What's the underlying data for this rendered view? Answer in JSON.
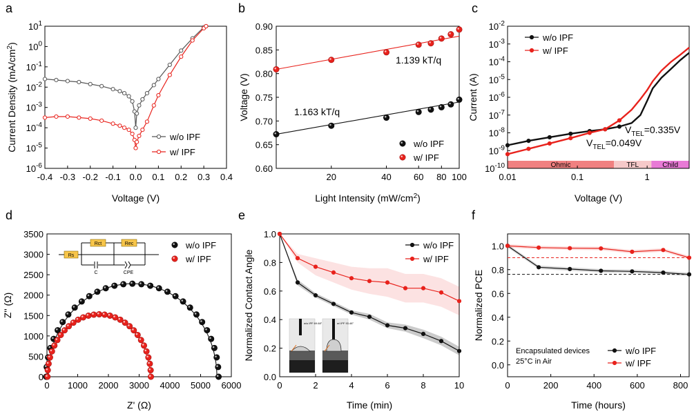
{
  "figure": {
    "panel_letters": [
      "a",
      "b",
      "c",
      "d",
      "e",
      "f"
    ]
  },
  "chart_data": [
    {
      "panel": "a",
      "type": "line",
      "xlabel": "Voltage (V)",
      "ylabel": "Current Density (mA/cm²)",
      "ylabel_parts": {
        "main": "Current Density (mA/cm",
        "sup": "2",
        "close": ")"
      },
      "xlim": [
        -0.4,
        0.4
      ],
      "ylim_log": [
        -6,
        1
      ],
      "xticks": [
        "-0.4",
        "-0.3",
        "-0.2",
        "-0.1",
        "0.0",
        "0.1",
        "0.2",
        "0.3",
        "0.4"
      ],
      "yticks": [
        {
          "base": "10",
          "exp": "-6"
        },
        {
          "base": "10",
          "exp": "-5"
        },
        {
          "base": "10",
          "exp": "-4"
        },
        {
          "base": "10",
          "exp": "-3"
        },
        {
          "base": "10",
          "exp": "-2"
        },
        {
          "base": "10",
          "exp": "-1"
        },
        {
          "base": "10",
          "exp": "0"
        },
        {
          "base": "10",
          "exp": "1"
        }
      ],
      "legend": [
        "w/o IPF",
        "w/ IPF"
      ],
      "series": [
        {
          "name": "w/o IPF",
          "color": "#555555",
          "x": [
            -0.4,
            -0.35,
            -0.3,
            -0.25,
            -0.2,
            -0.15,
            -0.1,
            -0.07,
            -0.05,
            -0.03,
            -0.015,
            -0.005,
            0.0,
            0.005,
            0.015,
            0.03,
            0.05,
            0.08,
            0.1,
            0.15,
            0.2,
            0.25,
            0.3,
            0.31
          ],
          "y_log": [
            -1.6,
            -1.65,
            -1.7,
            -1.75,
            -1.85,
            -1.95,
            -2.1,
            -2.2,
            -2.3,
            -2.45,
            -2.7,
            -3.2,
            -4.0,
            -3.3,
            -2.9,
            -2.6,
            -2.3,
            -1.9,
            -1.6,
            -0.9,
            -0.2,
            0.4,
            0.95,
            1.0
          ]
        },
        {
          "name": "w/ IPF",
          "color": "#e8221c",
          "x": [
            -0.4,
            -0.35,
            -0.3,
            -0.25,
            -0.2,
            -0.15,
            -0.1,
            -0.07,
            -0.05,
            -0.03,
            -0.015,
            -0.005,
            0.0,
            0.005,
            0.015,
            0.03,
            0.05,
            0.08,
            0.1,
            0.15,
            0.2,
            0.25,
            0.3,
            0.31
          ],
          "y_log": [
            -3.5,
            -3.45,
            -3.45,
            -3.5,
            -3.55,
            -3.65,
            -3.8,
            -3.9,
            -4.0,
            -4.1,
            -4.3,
            -4.6,
            -5.0,
            -4.7,
            -4.4,
            -4.1,
            -3.7,
            -2.9,
            -2.4,
            -1.4,
            -0.5,
            0.3,
            0.9,
            1.0
          ]
        }
      ]
    },
    {
      "panel": "b",
      "type": "scatter",
      "xlabel": "Light Intensity (mW/cm²)",
      "xlabel_parts": {
        "main": "Light Intensity (mW/cm",
        "sup": "2",
        "close": ")"
      },
      "ylabel": "Voltage (V)",
      "xscale": "log",
      "xlim": [
        10,
        100
      ],
      "ylim": [
        0.6,
        0.9
      ],
      "xticks": [
        "20",
        "40",
        "60",
        "80",
        "100"
      ],
      "yticks": [
        "0.60",
        "0.65",
        "0.70",
        "0.75",
        "0.80",
        "0.85",
        "0.90"
      ],
      "legend": [
        "w/o IPF",
        "w/ IPF"
      ],
      "annotations": [
        "1.139 kT/q",
        "1.163 kT/q"
      ],
      "series": [
        {
          "name": "w/o IPF",
          "color": "#111111",
          "x": [
            10,
            20,
            40,
            60,
            70,
            80,
            90,
            100
          ],
          "y": [
            0.672,
            0.69,
            0.707,
            0.719,
            0.724,
            0.729,
            0.735,
            0.745
          ],
          "fit": [
            [
              10,
              0.672
            ],
            [
              100,
              0.74
            ]
          ]
        },
        {
          "name": "w/ IPF",
          "color": "#e8221c",
          "x": [
            10,
            20,
            40,
            60,
            70,
            80,
            90,
            100
          ],
          "y": [
            0.809,
            0.829,
            0.845,
            0.861,
            0.864,
            0.874,
            0.883,
            0.893
          ],
          "fit": [
            [
              10,
              0.809
            ],
            [
              100,
              0.879
            ]
          ]
        }
      ]
    },
    {
      "panel": "c",
      "type": "line",
      "xlabel": "Voltage (V)",
      "ylabel": "Current (A)",
      "xscale": "log",
      "yscale": "log",
      "xlim": [
        0.01,
        4
      ],
      "ylim_log": [
        -10,
        -2
      ],
      "xticks": [
        "0.01",
        "0.1",
        "1"
      ],
      "yticks": [
        {
          "base": "10",
          "exp": "-10"
        },
        {
          "base": "10",
          "exp": "-9"
        },
        {
          "base": "10",
          "exp": "-8"
        },
        {
          "base": "10",
          "exp": "-7"
        },
        {
          "base": "10",
          "exp": "-6"
        },
        {
          "base": "10",
          "exp": "-5"
        },
        {
          "base": "10",
          "exp": "-4"
        },
        {
          "base": "10",
          "exp": "-3"
        },
        {
          "base": "10",
          "exp": "-2"
        }
      ],
      "legend": [
        "w/o IPF",
        "w/ IPF"
      ],
      "regions": [
        {
          "label": "Ohmic",
          "from": 0.01,
          "to": 0.335,
          "color": "#f08080"
        },
        {
          "label": "TFL",
          "from": 0.335,
          "to": 1.15,
          "color": "#f6c9c9"
        },
        {
          "label": "Child",
          "from": 1.15,
          "to": 4,
          "color": "#e87ad6"
        }
      ],
      "annotations": [
        {
          "text": "V",
          "sub": "TEL",
          "after": "=0.335V",
          "color": "#000000"
        },
        {
          "text": "V",
          "sub": "TEL",
          "after": "=0.049V",
          "color": "#e8221c"
        }
      ],
      "series": [
        {
          "name": "w/o IPF",
          "color": "#111111",
          "x": [
            0.01,
            0.02,
            0.04,
            0.08,
            0.15,
            0.25,
            0.4,
            0.6,
            0.8,
            1.0,
            1.2,
            1.6,
            2.2,
            3.0,
            4.0
          ],
          "y_log": [
            -8.7,
            -8.45,
            -8.25,
            -8.05,
            -7.9,
            -7.8,
            -7.65,
            -7.45,
            -7.0,
            -6.2,
            -5.5,
            -4.9,
            -4.4,
            -3.9,
            -3.5
          ]
        },
        {
          "name": "w/ IPF",
          "color": "#e8221c",
          "x": [
            0.01,
            0.02,
            0.04,
            0.08,
            0.15,
            0.25,
            0.4,
            0.6,
            0.8,
            1.0,
            1.2,
            1.6,
            2.2,
            3.0,
            4.0
          ],
          "y_log": [
            -9.2,
            -8.9,
            -8.6,
            -8.3,
            -8.0,
            -7.8,
            -7.3,
            -6.7,
            -6.1,
            -5.6,
            -5.1,
            -4.5,
            -4.0,
            -3.6,
            -3.2
          ]
        }
      ]
    },
    {
      "panel": "d",
      "type": "scatter",
      "xlabel": "Z' (Ω)",
      "ylabel": "Z'' (Ω)",
      "xlim": [
        0,
        6000
      ],
      "ylim": [
        0,
        3500
      ],
      "xticks": [
        "0",
        "1000",
        "2000",
        "3000",
        "4000",
        "5000",
        "6000"
      ],
      "yticks": [
        "0",
        "500",
        "1000",
        "1500",
        "2000",
        "2500",
        "3000",
        "3500"
      ],
      "legend": [
        "w/o IPF",
        "w/ IPF"
      ],
      "circuit_labels": [
        "Rs",
        "Rct",
        "Rec",
        "C",
        "CPE"
      ],
      "series": [
        {
          "name": "w/o IPF",
          "color": "#111111",
          "center": 2780,
          "radius": 2750,
          "height": 2280,
          "fit_end": 5200
        },
        {
          "name": "w/ IPF",
          "color": "#e8221c",
          "center": 1700,
          "radius": 1650,
          "height": 1530,
          "fit_end": 3320
        }
      ]
    },
    {
      "panel": "e",
      "type": "line",
      "xlabel": "Time (min)",
      "ylabel": "Normalized Contact Angle",
      "xlim": [
        0,
        10
      ],
      "ylim": [
        0,
        1.0
      ],
      "xticks": [
        "0",
        "2",
        "4",
        "6",
        "8",
        "10"
      ],
      "yticks": [
        "0.0",
        "0.2",
        "0.4",
        "0.6",
        "0.8",
        "1.0"
      ],
      "legend": [
        "w/o IPF",
        "w/ IPF"
      ],
      "inset_labels": [
        "w/o IPF 69.68°",
        "w/ IPF 93.48°"
      ],
      "series": [
        {
          "name": "w/o IPF",
          "color": "#111111",
          "x": [
            0,
            1,
            2,
            3,
            4,
            5,
            6,
            7,
            8,
            9,
            10
          ],
          "y": [
            1.0,
            0.66,
            0.57,
            0.51,
            0.45,
            0.42,
            0.36,
            0.34,
            0.3,
            0.25,
            0.18
          ],
          "err": [
            0,
            0.02,
            0.015,
            0.015,
            0.015,
            0.02,
            0.02,
            0.025,
            0.03,
            0.03,
            0.03
          ]
        },
        {
          "name": "w/ IPF",
          "color": "#e8221c",
          "x": [
            0,
            1,
            2,
            3,
            4,
            5,
            6,
            7,
            8,
            9,
            10
          ],
          "y": [
            1.0,
            0.83,
            0.77,
            0.73,
            0.69,
            0.67,
            0.66,
            0.62,
            0.62,
            0.59,
            0.53
          ],
          "err": [
            0,
            0.03,
            0.06,
            0.07,
            0.08,
            0.09,
            0.1,
            0.1,
            0.1,
            0.1,
            0.1
          ]
        }
      ]
    },
    {
      "panel": "f",
      "type": "line",
      "xlabel": "Time (hours)",
      "ylabel": "Normalized PCE",
      "xlim": [
        0,
        840
      ],
      "ylim": [
        -0.1,
        1.1
      ],
      "xticks": [
        "0",
        "200",
        "400",
        "600",
        "800"
      ],
      "yticks": [
        "0.0",
        "0.2",
        "0.4",
        "0.6",
        "0.8",
        "1.0"
      ],
      "legend": [
        "w/o IPF",
        "w/ IPF"
      ],
      "notes": [
        "Encapsulated devices",
        "25°C in Air"
      ],
      "reference_lines": [
        {
          "y": 0.9,
          "color": "#e8221c"
        },
        {
          "y": 0.76,
          "color": "#111111"
        }
      ],
      "series": [
        {
          "name": "w/o IPF",
          "color": "#111111",
          "x": [
            0,
            144,
            288,
            432,
            576,
            720,
            840
          ],
          "y": [
            1.0,
            0.82,
            0.805,
            0.79,
            0.785,
            0.775,
            0.76
          ]
        },
        {
          "name": "w/ IPF",
          "color": "#e8221c",
          "x": [
            0,
            144,
            288,
            432,
            576,
            720,
            840
          ],
          "y": [
            1.0,
            0.985,
            0.98,
            0.978,
            0.95,
            0.965,
            0.9
          ]
        }
      ]
    }
  ]
}
